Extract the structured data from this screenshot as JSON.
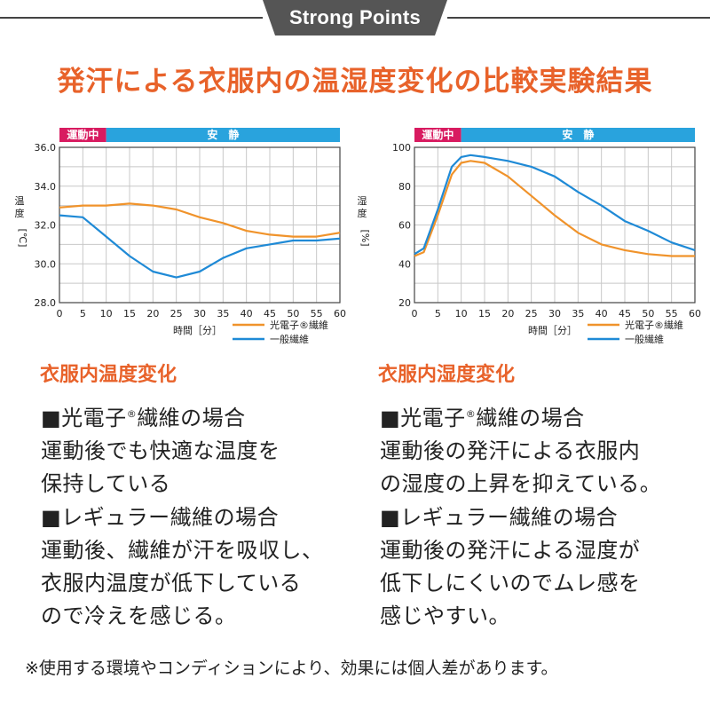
{
  "banner": {
    "text": "Strong Points"
  },
  "main_title": "発汗による衣服内の温湿度変化の比較実験結果",
  "left": {
    "subtitle": "衣服内温度変化",
    "p1_line1": "■光電子",
    "p1_line1_sup": "®",
    "p1_line1_rest": "繊維の場合",
    "p1_line2": "運動後でも快適な温度を",
    "p1_line3": "保持している",
    "p2_line1": "■レギュラー繊維の場合",
    "p2_line2": "運動後、繊維が汗を吸収し、",
    "p2_line3": "衣服内温度が低下している",
    "p2_line4": "ので冷えを感じる。"
  },
  "right": {
    "subtitle": "衣服内湿度変化",
    "p1_line1": "■光電子",
    "p1_line1_sup": "®",
    "p1_line1_rest": "繊維の場合",
    "p1_line2": "運動後の発汗による衣服内",
    "p1_line3": "の湿度の上昇を抑えている。",
    "p2_line1": "■レギュラー繊維の場合",
    "p2_line2": "運動後の発汗による湿度が",
    "p2_line3": "低下しにくいのでムレ感を",
    "p2_line4": "感じやすい。"
  },
  "note": "※使用する環境やコンディションにより、効果には個人差があります。",
  "colors": {
    "accent": "#e8622a",
    "orange": "#f0932b",
    "blue": "#1f8ad6",
    "exercise": "#d81b60",
    "rest": "#29a3dd",
    "grid": "#c8c8c8"
  },
  "chart_data": [
    {
      "type": "line",
      "phase_labels": [
        "運動中",
        "安　静"
      ],
      "exercise_end": 10,
      "ylabel_chars": [
        "温",
        "度"
      ],
      "yunit": "[℃]",
      "xlabel": "時間［分］",
      "xlim": [
        0,
        60
      ],
      "ylim": [
        28,
        36
      ],
      "x_ticks": [
        0,
        5,
        10,
        15,
        20,
        25,
        30,
        35,
        40,
        45,
        50,
        55,
        60
      ],
      "y_ticks": [
        "28.0",
        "30.0",
        "32.0",
        "34.0",
        "36.0"
      ],
      "y_tick_values": [
        28,
        30,
        32,
        34,
        36
      ],
      "grid": true,
      "legend_position": "bottom-right",
      "series": [
        {
          "name": "光電子®繊維",
          "color": "#f0932b",
          "x": [
            0,
            5,
            10,
            15,
            20,
            25,
            30,
            35,
            40,
            45,
            50,
            55,
            60
          ],
          "y": [
            32.9,
            33.0,
            33.0,
            33.1,
            33.0,
            32.8,
            32.4,
            32.1,
            31.7,
            31.5,
            31.4,
            31.4,
            31.6
          ]
        },
        {
          "name": "一般繊維",
          "color": "#1f8ad6",
          "x": [
            0,
            5,
            10,
            15,
            20,
            25,
            30,
            35,
            40,
            45,
            50,
            55,
            60
          ],
          "y": [
            32.5,
            32.4,
            31.4,
            30.4,
            29.6,
            29.3,
            29.6,
            30.3,
            30.8,
            31.0,
            31.2,
            31.2,
            31.3
          ]
        }
      ]
    },
    {
      "type": "line",
      "phase_labels": [
        "運動中",
        "安　静"
      ],
      "exercise_end": 10,
      "ylabel_chars": [
        "湿",
        "度"
      ],
      "yunit": "[%]",
      "xlabel": "時間［分］",
      "xlim": [
        0,
        60
      ],
      "ylim": [
        20,
        100
      ],
      "x_ticks": [
        0,
        5,
        10,
        15,
        20,
        25,
        30,
        35,
        40,
        45,
        50,
        55,
        60
      ],
      "y_ticks": [
        "20",
        "40",
        "60",
        "80",
        "100"
      ],
      "y_tick_values": [
        20,
        40,
        60,
        80,
        100
      ],
      "grid": true,
      "legend_position": "bottom-right",
      "series": [
        {
          "name": "光電子®繊維",
          "color": "#f0932b",
          "x": [
            0,
            2,
            5,
            8,
            10,
            12,
            15,
            20,
            25,
            30,
            35,
            40,
            45,
            50,
            55,
            60
          ],
          "y": [
            44,
            46,
            65,
            86,
            92,
            93,
            92,
            85,
            75,
            65,
            56,
            50,
            47,
            45,
            44,
            44
          ]
        },
        {
          "name": "一般繊維",
          "color": "#1f8ad6",
          "x": [
            0,
            2,
            5,
            8,
            10,
            12,
            15,
            20,
            25,
            30,
            35,
            40,
            45,
            50,
            55,
            60
          ],
          "y": [
            45,
            48,
            68,
            90,
            95,
            96,
            95,
            93,
            90,
            85,
            77,
            70,
            62,
            57,
            51,
            47
          ]
        }
      ]
    }
  ]
}
